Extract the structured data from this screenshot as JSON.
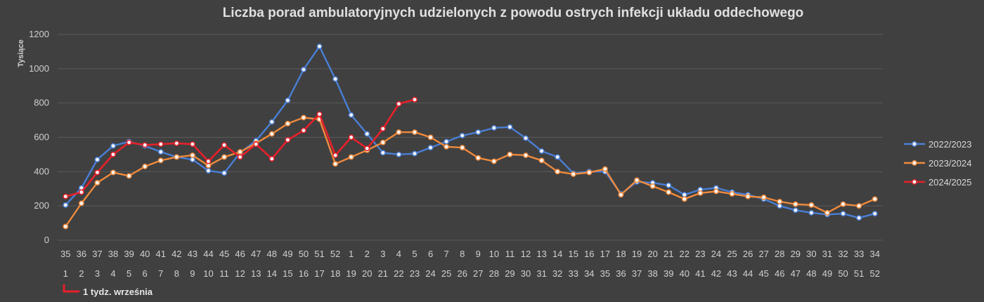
{
  "chart_data": {
    "type": "line",
    "title": "Liczba porad ambulatoryjnych udzielonych z powodu ostrych infekcji układu oddechowego",
    "ylabel": "Tysiące",
    "ylim": [
      0,
      1200
    ],
    "yticks": [
      0,
      200,
      400,
      600,
      800,
      1000,
      1200
    ],
    "grid": true,
    "legend_position": "right",
    "x_row1": [
      "35",
      "36",
      "37",
      "38",
      "39",
      "40",
      "41",
      "42",
      "43",
      "44",
      "45",
      "46",
      "47",
      "48",
      "49",
      "50",
      "51",
      "52",
      "1",
      "2",
      "3",
      "4",
      "5",
      "6",
      "7",
      "8",
      "9",
      "10",
      "11",
      "12",
      "13",
      "14",
      "15",
      "16",
      "17",
      "18",
      "19",
      "20",
      "21",
      "22",
      "23",
      "24",
      "25",
      "26",
      "27",
      "28",
      "29",
      "30",
      "31",
      "32",
      "33",
      "34"
    ],
    "x_row2": [
      "1",
      "2",
      "3",
      "4",
      "5",
      "6",
      "7",
      "8",
      "9",
      "10",
      "11",
      "12",
      "13",
      "14",
      "15",
      "16",
      "17",
      "18",
      "19",
      "20",
      "21",
      "22",
      "23",
      "24",
      "25",
      "26",
      "27",
      "28",
      "29",
      "30",
      "31",
      "32",
      "33",
      "34",
      "35",
      "36",
      "37",
      "38",
      "39",
      "40",
      "41",
      "42",
      "43",
      "44",
      "45",
      "46",
      "47",
      "48",
      "49",
      "50",
      "51",
      "52"
    ],
    "series": [
      {
        "name": "2022/2023",
        "color": "#4a7fd6",
        "values": [
          205,
          305,
          470,
          550,
          575,
          550,
          515,
          485,
          470,
          405,
          392,
          510,
          580,
          690,
          815,
          995,
          1130,
          940,
          730,
          620,
          510,
          500,
          505,
          540,
          575,
          610,
          630,
          655,
          660,
          595,
          520,
          485,
          390,
          400,
          400,
          270,
          340,
          335,
          320,
          265,
          295,
          305,
          280,
          265,
          240,
          200,
          175,
          160,
          150,
          155,
          130,
          155
        ]
      },
      {
        "name": "2023/2024",
        "color": "#f08a3c",
        "values": [
          80,
          215,
          335,
          395,
          375,
          430,
          465,
          485,
          495,
          435,
          485,
          515,
          565,
          620,
          680,
          715,
          705,
          445,
          485,
          525,
          570,
          630,
          630,
          600,
          545,
          540,
          480,
          460,
          500,
          495,
          465,
          400,
          385,
          395,
          415,
          265,
          350,
          315,
          280,
          240,
          275,
          285,
          270,
          255,
          250,
          225,
          210,
          205,
          160,
          210,
          200,
          240
        ]
      },
      {
        "name": "2024/2025",
        "color": "#e8202a",
        "values": [
          255,
          280,
          395,
          500,
          570,
          555,
          560,
          565,
          560,
          460,
          555,
          485,
          560,
          475,
          585,
          640,
          735,
          495,
          600,
          535,
          650,
          795,
          820
        ]
      }
    ],
    "annotation": "1 tydz. września"
  }
}
